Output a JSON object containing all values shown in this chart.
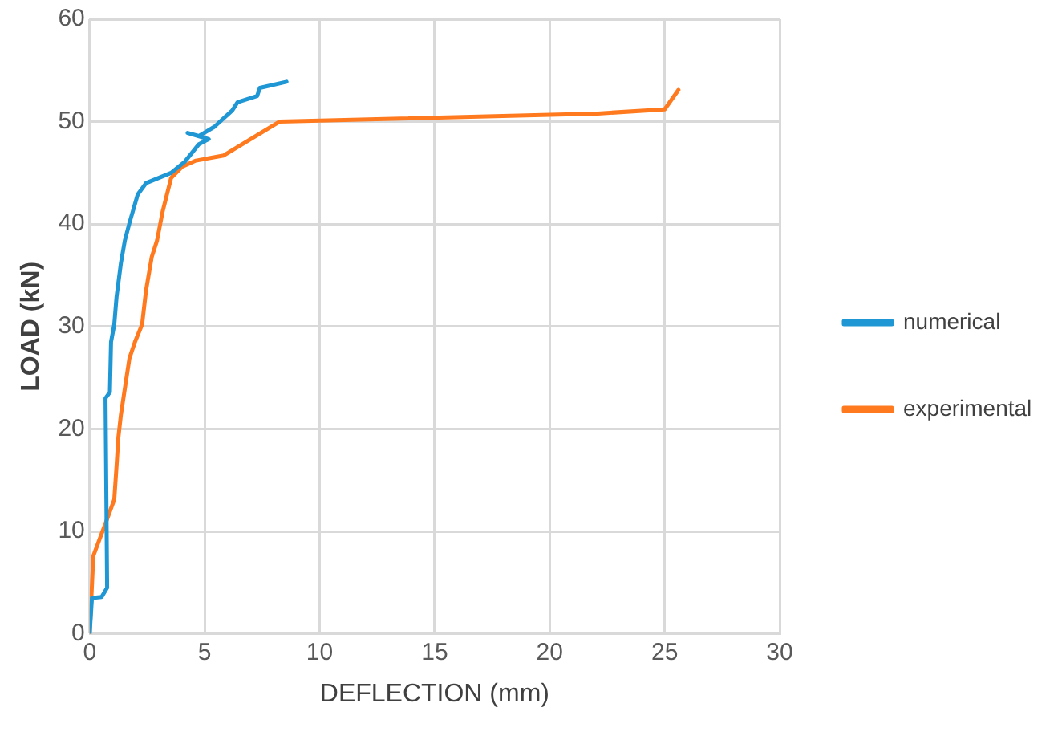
{
  "chart_data": {
    "type": "line",
    "xlabel": "DEFLECTION (mm)",
    "ylabel": "LOAD (kN)",
    "xlim": [
      0,
      30
    ],
    "xticks": [
      0,
      5,
      10,
      15,
      20,
      25,
      30
    ],
    "ylim": [
      0,
      60
    ],
    "yticks": [
      0,
      10,
      20,
      30,
      40,
      50,
      60
    ],
    "grid": true,
    "legend": "right",
    "marker": "none",
    "line_style": "solid",
    "series": [
      {
        "name": "numerical",
        "color": "#1f97d4",
        "x": [
          0,
          0.1,
          0.52,
          0.76,
          0.69,
          0.88,
          0.93,
          1.07,
          1.17,
          1.36,
          1.53,
          1.73,
          2.09,
          2.45,
          3.54,
          4.14,
          4.75,
          5.18,
          4.26,
          4.75,
          5.42,
          6.2,
          6.43,
          7.28,
          7.4,
          8.56
        ],
        "values": [
          0,
          3.5,
          3.6,
          4.5,
          23,
          23.6,
          28.5,
          30.2,
          32.9,
          36.2,
          38.4,
          40.1,
          42.9,
          44,
          45,
          46.1,
          47.8,
          48.3,
          48.9,
          48.6,
          49.5,
          51.1,
          51.9,
          52.5,
          53.3,
          53.9
        ]
      },
      {
        "name": "experimental",
        "color": "#ff7a1f",
        "x": [
          0,
          0.16,
          0.76,
          1.07,
          1.17,
          1.25,
          1.36,
          1.56,
          1.73,
          1.97,
          2.28,
          2.45,
          2.7,
          2.93,
          3.17,
          3.54,
          4.02,
          4.62,
          5.83,
          8.25,
          22.1,
          25,
          25.6
        ],
        "values": [
          0,
          7.6,
          11.2,
          13.1,
          16.4,
          19.2,
          21.4,
          24.4,
          26.9,
          28.5,
          30.2,
          33.5,
          36.8,
          38.4,
          41.2,
          44.5,
          45.6,
          46.2,
          46.7,
          50,
          50.8,
          51.2,
          53.1
        ]
      }
    ]
  }
}
